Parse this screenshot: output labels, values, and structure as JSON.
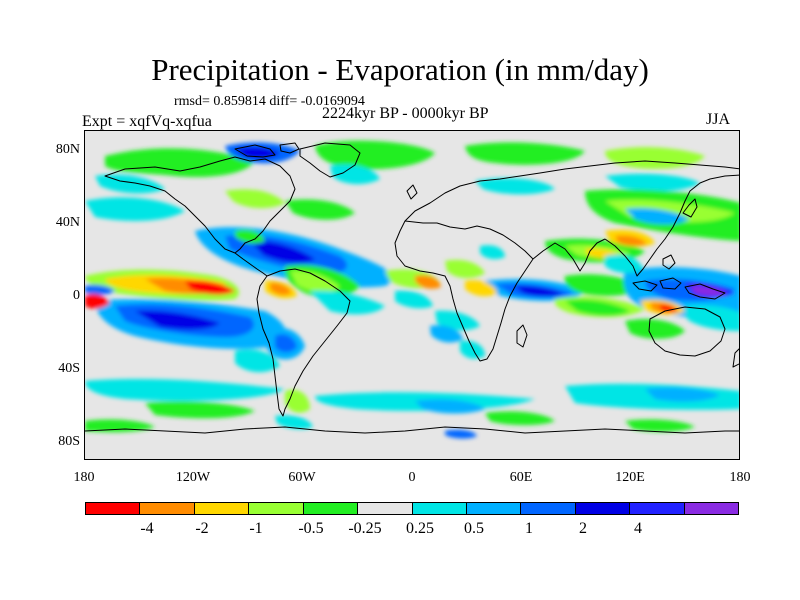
{
  "header": {
    "title": "Precipitation - Evaporation (in mm/day)",
    "stats": "rmsd= 0.859814 diff= -0.0169094",
    "experiment": "Expt = xqfVq-xqfua",
    "period": "2224kyr BP - 0000kyr BP",
    "season": "JJA"
  },
  "axes": {
    "lat_labels": [
      "80N",
      "40N",
      "0",
      "40S",
      "80S"
    ],
    "lon_labels": [
      "180",
      "120W",
      "60W",
      "0",
      "60E",
      "120E",
      "180"
    ]
  },
  "colorbar": {
    "colors": [
      "#ff0000",
      "#ff8c00",
      "#ffd700",
      "#99ff33",
      "#22ee22",
      "#e6e6e6",
      "#00e5e5",
      "#00b0ff",
      "#0066ff",
      "#0000e5",
      "#2222ff",
      "#8a2be2"
    ],
    "labels": [
      "-4",
      "-2",
      "-1",
      "-0.5",
      "-0.25",
      "0.25",
      "0.5",
      "1",
      "2",
      "4"
    ]
  },
  "map": {
    "background": "#e6e6e6",
    "coast_color": "#000000"
  }
}
